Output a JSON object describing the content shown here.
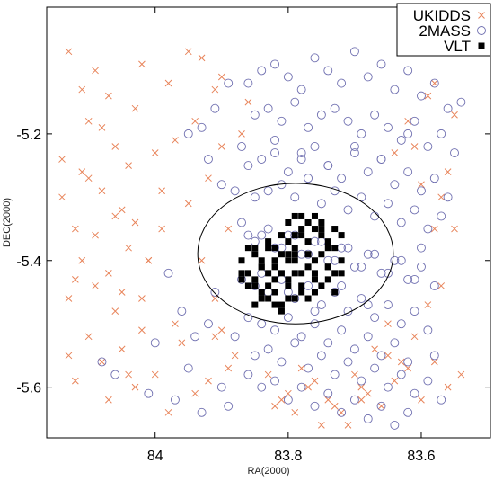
{
  "chart_data": {
    "type": "scatter",
    "xlabel": "RA(2000)",
    "ylabel": "DEC(2000)",
    "xlim": [
      84.163,
      83.496
    ],
    "ylim": [
      -5.68,
      -5.0
    ],
    "x_reversed": true,
    "x_ticks": [
      84.0,
      83.8,
      83.6
    ],
    "x_tick_labels": [
      "84",
      "83.8",
      "83.6"
    ],
    "y_ticks": [
      -5.2,
      -5.4,
      -5.6
    ],
    "y_tick_labels": [
      "-5.2",
      "-5.4",
      "-5.6"
    ],
    "grid": false,
    "legend_position": "top-right",
    "legend": [
      "UKIDDS",
      "2MASS",
      "VLT"
    ],
    "circle": {
      "center": [
        83.789,
        -5.389
      ],
      "radius_ra": 0.147,
      "radius_dec": 0.111
    },
    "colors": {
      "UKIDDS": "#e8845a",
      "2MASS": "#6f6fb0",
      "VLT": "#000000"
    },
    "series": [
      {
        "name": "UKIDDS",
        "marker": "x",
        "x": [
          84.13,
          84.09,
          84.02,
          83.98,
          83.95,
          84.1,
          84.06,
          84.03,
          84.11,
          84.08,
          84.0,
          83.97,
          84.05,
          84.14,
          84.12,
          84.04,
          83.99,
          84.07,
          84.01,
          84.09,
          84.13,
          84.06,
          84.02,
          84.1,
          84.05,
          83.97,
          84.12,
          84.08,
          84.03,
          84.0,
          84.11,
          84.07,
          84.04,
          84.14,
          83.99,
          84.09,
          84.06,
          84.12,
          84.02,
          84.05,
          83.96,
          84.1,
          84.08,
          84.03,
          84.01,
          84.13,
          84.07,
          84.04,
          83.98,
          84.11,
          83.93,
          83.91,
          83.94,
          83.9,
          83.92,
          83.95,
          83.89,
          83.93,
          83.91,
          83.9,
          83.88,
          83.92,
          83.94,
          83.89,
          83.91,
          83.87,
          83.86,
          83.9,
          83.83,
          83.81,
          83.79,
          83.77,
          83.75,
          83.8,
          83.78,
          83.82,
          83.76,
          83.74,
          83.72,
          83.7,
          83.68,
          83.66,
          83.64,
          83.62,
          83.6,
          83.58,
          83.56,
          83.54,
          83.71,
          83.69,
          83.67,
          83.65,
          83.63,
          83.61,
          83.59,
          83.57,
          83.55,
          83.73,
          83.62,
          83.58,
          83.64,
          83.6,
          83.57,
          83.55,
          83.59,
          83.61,
          83.56,
          83.58,
          83.69,
          83.65
        ],
        "y": [
          -5.07,
          -5.1,
          -5.09,
          -5.12,
          -5.07,
          -5.18,
          -5.22,
          -5.16,
          -5.26,
          -5.29,
          -5.23,
          -5.21,
          -5.32,
          -5.3,
          -5.35,
          -5.38,
          -5.35,
          -5.42,
          -5.4,
          -5.44,
          -5.46,
          -5.48,
          -5.46,
          -5.52,
          -5.54,
          -5.5,
          -5.59,
          -5.56,
          -5.6,
          -5.58,
          -5.13,
          -5.14,
          -5.25,
          -5.24,
          -5.29,
          -5.36,
          -5.33,
          -5.43,
          -5.51,
          -5.45,
          -5.53,
          -5.27,
          -5.19,
          -5.34,
          -5.4,
          -5.55,
          -5.62,
          -5.58,
          -5.64,
          -5.4,
          -5.08,
          -5.13,
          -5.18,
          -5.22,
          -5.27,
          -5.31,
          -5.35,
          -5.4,
          -5.46,
          -5.51,
          -5.55,
          -5.59,
          -5.61,
          -5.57,
          -5.52,
          -5.2,
          -5.15,
          -5.11,
          -5.58,
          -5.62,
          -5.64,
          -5.6,
          -5.66,
          -5.61,
          -5.57,
          -5.63,
          -5.59,
          -5.62,
          -5.64,
          -5.58,
          -5.61,
          -5.63,
          -5.59,
          -5.57,
          -5.62,
          -5.56,
          -5.6,
          -5.58,
          -5.66,
          -5.6,
          -5.54,
          -5.5,
          -5.56,
          -5.52,
          -5.47,
          -5.44,
          -5.35,
          -5.63,
          -5.18,
          -5.12,
          -5.23,
          -5.28,
          -5.3,
          -5.17,
          -5.14,
          -5.22,
          -5.26,
          -5.35,
          -5.62,
          -5.55
        ]
      },
      {
        "name": "2MASS",
        "marker": "o",
        "x": [
          83.86,
          83.84,
          83.82,
          83.8,
          83.78,
          83.76,
          83.74,
          83.72,
          83.7,
          83.68,
          83.66,
          83.64,
          83.62,
          83.6,
          83.58,
          83.56,
          83.54,
          83.85,
          83.83,
          83.81,
          83.79,
          83.77,
          83.75,
          83.73,
          83.71,
          83.69,
          83.67,
          83.65,
          83.63,
          83.61,
          83.59,
          83.57,
          83.55,
          83.87,
          83.86,
          83.84,
          83.82,
          83.8,
          83.78,
          83.76,
          83.74,
          83.72,
          83.7,
          83.68,
          83.66,
          83.64,
          83.62,
          83.6,
          83.58,
          83.56,
          83.88,
          83.85,
          83.83,
          83.81,
          83.79,
          83.77,
          83.75,
          83.73,
          83.71,
          83.69,
          83.67,
          83.65,
          83.63,
          83.61,
          83.59,
          83.57,
          83.86,
          83.84,
          83.82,
          83.8,
          83.78,
          83.76,
          83.74,
          83.72,
          83.7,
          83.68,
          83.66,
          83.64,
          83.62,
          83.6,
          83.58,
          83.87,
          83.85,
          83.83,
          83.81,
          83.79,
          83.77,
          83.75,
          83.73,
          83.71,
          83.69,
          83.67,
          83.65,
          83.63,
          83.61,
          83.59,
          83.86,
          83.84,
          83.82,
          83.8,
          83.78,
          83.76,
          83.74,
          83.72,
          83.7,
          83.68,
          83.66,
          83.64,
          83.62,
          83.88,
          83.85,
          83.83,
          83.81,
          83.79,
          83.77,
          83.75,
          83.73,
          83.71,
          83.69,
          83.67,
          83.65,
          83.63,
          83.61,
          83.59,
          83.57,
          83.86,
          83.84,
          83.82,
          83.8,
          83.78,
          83.76,
          83.74,
          83.72,
          83.7,
          83.68,
          83.66,
          83.64,
          83.62,
          83.6,
          83.87,
          83.85,
          83.83,
          83.81,
          83.79,
          83.77,
          83.75,
          83.73,
          83.71,
          83.69,
          83.67,
          83.65,
          83.63,
          83.61,
          83.58,
          84.08,
          84.06,
          84.01,
          84.0,
          83.97,
          83.95,
          83.93,
          83.92,
          83.9,
          83.89,
          83.91,
          83.94,
          83.96,
          83.98,
          83.92,
          83.9,
          83.93,
          83.91,
          83.89,
          83.95,
          83.84,
          83.8,
          83.76,
          83.72,
          83.68,
          83.82,
          83.78,
          83.74,
          83.7,
          83.66,
          83.62
        ],
        "y": [
          -5.12,
          -5.1,
          -5.09,
          -5.11,
          -5.13,
          -5.08,
          -5.1,
          -5.12,
          -5.07,
          -5.11,
          -5.09,
          -5.13,
          -5.1,
          -5.14,
          -5.12,
          -5.16,
          -5.15,
          -5.17,
          -5.16,
          -5.18,
          -5.15,
          -5.19,
          -5.17,
          -5.16,
          -5.18,
          -5.2,
          -5.17,
          -5.19,
          -5.21,
          -5.18,
          -5.22,
          -5.2,
          -5.23,
          -5.22,
          -5.25,
          -5.24,
          -5.23,
          -5.26,
          -5.24,
          -5.22,
          -5.25,
          -5.27,
          -5.23,
          -5.26,
          -5.24,
          -5.28,
          -5.26,
          -5.29,
          -5.27,
          -5.3,
          -5.29,
          -5.3,
          -5.29,
          -5.28,
          -5.3,
          -5.27,
          -5.31,
          -5.29,
          -5.32,
          -5.3,
          -5.33,
          -5.31,
          -5.34,
          -5.32,
          -5.35,
          -5.33,
          -5.36,
          -5.36,
          -5.38,
          -5.36,
          -5.39,
          -5.37,
          -5.4,
          -5.38,
          -5.41,
          -5.39,
          -5.42,
          -5.4,
          -5.43,
          -5.41,
          -5.44,
          -5.43,
          -5.44,
          -5.45,
          -5.43,
          -5.46,
          -5.44,
          -5.47,
          -5.45,
          -5.48,
          -5.46,
          -5.49,
          -5.47,
          -5.5,
          -5.48,
          -5.51,
          -5.49,
          -5.5,
          -5.51,
          -5.49,
          -5.52,
          -5.5,
          -5.53,
          -5.51,
          -5.54,
          -5.52,
          -5.55,
          -5.53,
          -5.56,
          -5.52,
          -5.55,
          -5.54,
          -5.56,
          -5.53,
          -5.57,
          -5.55,
          -5.58,
          -5.56,
          -5.59,
          -5.57,
          -5.6,
          -5.58,
          -5.61,
          -5.59,
          -5.62,
          -5.58,
          -5.6,
          -5.59,
          -5.62,
          -5.6,
          -5.63,
          -5.61,
          -5.64,
          -5.62,
          -5.65,
          -5.63,
          -5.66,
          -5.64,
          -5.38,
          -5.34,
          -5.37,
          -5.35,
          -5.38,
          -5.36,
          -5.39,
          -5.37,
          -5.4,
          -5.38,
          -5.41,
          -5.39,
          -5.42,
          -5.4,
          -5.43,
          -5.55,
          -5.56,
          -5.58,
          -5.61,
          -5.53,
          -5.62,
          -5.57,
          -5.64,
          -5.5,
          -5.6,
          -5.63,
          -5.45,
          -5.52,
          -5.48,
          -5.42,
          -5.24,
          -5.28,
          -5.19,
          -5.16,
          -5.12,
          -5.2,
          -5.42,
          -5.45,
          -5.48,
          -5.44,
          -5.47,
          -5.21,
          -5.23,
          -5.25,
          -5.22,
          -5.24,
          -5.2
        ]
      },
      {
        "name": "VLT",
        "marker": "s",
        "x": [
          83.79,
          83.77,
          83.76,
          83.78,
          83.8,
          83.75,
          83.74,
          83.77,
          83.79,
          83.76,
          83.78,
          83.73,
          83.75,
          83.8,
          83.81,
          83.77,
          83.74,
          83.76,
          83.79,
          83.78,
          83.75,
          83.73,
          83.77,
          83.8,
          83.82,
          83.76,
          83.74,
          83.78,
          83.79,
          83.75,
          83.83,
          83.85,
          83.84,
          83.86,
          83.82,
          83.84,
          83.83,
          83.85,
          83.87,
          83.84,
          83.86,
          83.83,
          83.85,
          83.82,
          83.84,
          83.86,
          83.83,
          83.85,
          83.87,
          83.84,
          83.81,
          83.8,
          83.82,
          83.79,
          83.81,
          83.8,
          83.78,
          83.82,
          83.79,
          83.81,
          83.77,
          83.8,
          83.78,
          83.76,
          83.8,
          83.72,
          83.73,
          83.74,
          83.72,
          83.75,
          83.73,
          83.74,
          83.72,
          83.76,
          83.81,
          83.83,
          83.79,
          83.85,
          83.87,
          83.82
        ],
        "y": [
          -5.33,
          -5.34,
          -5.35,
          -5.36,
          -5.34,
          -5.36,
          -5.38,
          -5.37,
          -5.38,
          -5.33,
          -5.35,
          -5.35,
          -5.34,
          -5.37,
          -5.36,
          -5.39,
          -5.37,
          -5.4,
          -5.4,
          -5.33,
          -5.39,
          -5.38,
          -5.41,
          -5.39,
          -5.38,
          -5.42,
          -5.41,
          -5.42,
          -5.36,
          -5.35,
          -5.38,
          -5.39,
          -5.41,
          -5.42,
          -5.43,
          -5.4,
          -5.44,
          -5.43,
          -5.4,
          -5.45,
          -5.44,
          -5.42,
          -5.38,
          -5.4,
          -5.46,
          -5.38,
          -5.46,
          -5.47,
          -5.43,
          -5.41,
          -5.42,
          -5.44,
          -5.45,
          -5.46,
          -5.47,
          -5.43,
          -5.44,
          -5.41,
          -5.42,
          -5.48,
          -5.46,
          -5.46,
          -5.45,
          -5.43,
          -5.4,
          -5.36,
          -5.42,
          -5.43,
          -5.4,
          -5.44,
          -5.45,
          -5.41,
          -5.42,
          -5.45,
          -5.39,
          -5.37,
          -5.39,
          -5.44,
          -5.42,
          -5.47
        ]
      }
    ]
  }
}
